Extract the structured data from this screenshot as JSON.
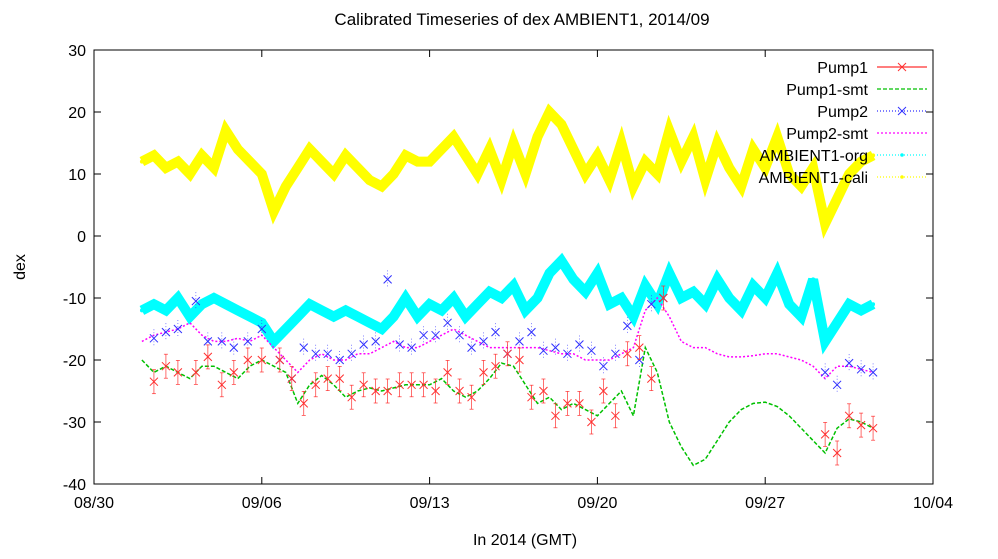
{
  "chart_data": {
    "type": "line",
    "title": "Calibrated Timeseries of dex AMBIENT1, 2014/09",
    "xlabel": "In 2014 (GMT)",
    "ylabel": "dex",
    "x_ticks": [
      "08/30",
      "09/06",
      "09/13",
      "09/20",
      "09/27",
      "10/04"
    ],
    "y_ticks": [
      "-40",
      "-30",
      "-20",
      "-10",
      "0",
      "10",
      "20",
      "30"
    ],
    "xlim": [
      "2014-08-30",
      "2014-10-04"
    ],
    "ylim": [
      -40,
      30
    ],
    "grid": false,
    "legend_position": "top-right",
    "series": [
      {
        "name": "Pump1",
        "color": "#ff3030",
        "marker": "x",
        "x": [
          "2014-09-01T12:00",
          "2014-09-02T00:00",
          "2014-09-02T12:00",
          "2014-09-03T06:00",
          "2014-09-03T18:00",
          "2014-09-04T08:00",
          "2014-09-04T20:00",
          "2014-09-05T10:00",
          "2014-09-06T00:00",
          "2014-09-06T18:00",
          "2014-09-07T06:00",
          "2014-09-07T18:00",
          "2014-09-08T06:00",
          "2014-09-08T18:00",
          "2014-09-09T06:00",
          "2014-09-09T18:00",
          "2014-09-10T06:00",
          "2014-09-10T18:00",
          "2014-09-11T06:00",
          "2014-09-11T18:00",
          "2014-09-12T06:00",
          "2014-09-12T18:00",
          "2014-09-13T06:00",
          "2014-09-13T18:00",
          "2014-09-14T06:00",
          "2014-09-14T18:00",
          "2014-09-15T06:00",
          "2014-09-15T18:00",
          "2014-09-16T06:00",
          "2014-09-16T18:00",
          "2014-09-17T06:00",
          "2014-09-17T18:00",
          "2014-09-18T06:00",
          "2014-09-18T18:00",
          "2014-09-19T06:00",
          "2014-09-19T18:00",
          "2014-09-20T06:00",
          "2014-09-20T18:00",
          "2014-09-21T06:00",
          "2014-09-21T18:00",
          "2014-09-22T06:00",
          "2014-09-22T18:00",
          "2014-09-29T12:00",
          "2014-09-30T00:00",
          "2014-09-30T12:00",
          "2014-10-01T00:00",
          "2014-10-01T12:00"
        ],
        "values": [
          -23.5,
          -21,
          -22,
          -22,
          -19.5,
          -24,
          -22,
          -20,
          -20,
          -20,
          -23,
          -27,
          -24,
          -23,
          -23,
          -26,
          -24,
          -25,
          -25,
          -24,
          -24,
          -24,
          -25,
          -22,
          -25,
          -26,
          -22,
          -21,
          -19,
          -20,
          -26,
          -25,
          -29,
          -27,
          -27,
          -30,
          -25,
          -29,
          -19,
          -18,
          -23,
          -10,
          -32,
          -35,
          -29,
          -30.5,
          -31
        ]
      },
      {
        "name": "Pump1-smt",
        "color": "#00c000",
        "x": [
          "2014-09-01T00:00",
          "2014-09-01T12:00",
          "2014-09-02T00:00",
          "2014-09-02T12:00",
          "2014-09-03T00:00",
          "2014-09-03T12:00",
          "2014-09-04T00:00",
          "2014-09-04T12:00",
          "2014-09-05T00:00",
          "2014-09-05T12:00",
          "2014-09-06T00:00",
          "2014-09-06T12:00",
          "2014-09-07T00:00",
          "2014-09-07T12:00",
          "2014-09-08T00:00",
          "2014-09-08T12:00",
          "2014-09-09T00:00",
          "2014-09-09T12:00",
          "2014-09-10T00:00",
          "2014-09-10T12:00",
          "2014-09-11T00:00",
          "2014-09-11T12:00",
          "2014-09-12T00:00",
          "2014-09-12T12:00",
          "2014-09-13T00:00",
          "2014-09-13T12:00",
          "2014-09-14T00:00",
          "2014-09-14T12:00",
          "2014-09-15T00:00",
          "2014-09-15T12:00",
          "2014-09-16T00:00",
          "2014-09-16T12:00",
          "2014-09-17T00:00",
          "2014-09-17T12:00",
          "2014-09-18T00:00",
          "2014-09-18T12:00",
          "2014-09-19T00:00",
          "2014-09-19T12:00",
          "2014-09-20T00:00",
          "2014-09-20T12:00",
          "2014-09-21T00:00",
          "2014-09-21T12:00",
          "2014-09-22T00:00",
          "2014-09-22T12:00",
          "2014-09-23T00:00",
          "2014-09-23T12:00",
          "2014-09-24T00:00",
          "2014-09-24T12:00",
          "2014-09-25T00:00",
          "2014-09-25T12:00",
          "2014-09-26T00:00",
          "2014-09-26T12:00",
          "2014-09-27T00:00",
          "2014-09-27T12:00",
          "2014-09-28T00:00",
          "2014-09-28T12:00",
          "2014-09-29T00:00",
          "2014-09-29T12:00",
          "2014-09-30T00:00",
          "2014-09-30T12:00",
          "2014-10-01T00:00",
          "2014-10-01T12:00"
        ],
        "values": [
          -20,
          -22,
          -21,
          -22,
          -23,
          -21,
          -21,
          -22,
          -23,
          -21,
          -20,
          -21,
          -22,
          -27,
          -24,
          -22.5,
          -24,
          -26,
          -25,
          -24.5,
          -25,
          -24.5,
          -24,
          -24,
          -24,
          -23,
          -25,
          -26,
          -25,
          -23,
          -20.5,
          -21,
          -24,
          -27,
          -26,
          -28,
          -27,
          -28,
          -29,
          -27,
          -25,
          -29,
          -18,
          -22,
          -30,
          -34,
          -37,
          -36,
          -33,
          -30,
          -28,
          -27,
          -26.8,
          -27.5,
          -29,
          -31,
          -33,
          -35,
          -31,
          -29.5,
          -30,
          -31
        ]
      },
      {
        "name": "Pump2",
        "color": "#3030ff",
        "marker": "x",
        "x": [
          "2014-09-01T12:00",
          "2014-09-02T00:00",
          "2014-09-02T12:00",
          "2014-09-03T06:00",
          "2014-09-03T18:00",
          "2014-09-04T08:00",
          "2014-09-04T20:00",
          "2014-09-05T10:00",
          "2014-09-06T00:00",
          "2014-09-06T18:00",
          "2014-09-07T06:00",
          "2014-09-07T18:00",
          "2014-09-08T06:00",
          "2014-09-08T18:00",
          "2014-09-09T06:00",
          "2014-09-09T18:00",
          "2014-09-10T06:00",
          "2014-09-10T18:00",
          "2014-09-11T06:00",
          "2014-09-11T18:00",
          "2014-09-12T06:00",
          "2014-09-12T18:00",
          "2014-09-13T06:00",
          "2014-09-13T18:00",
          "2014-09-14T06:00",
          "2014-09-14T18:00",
          "2014-09-15T06:00",
          "2014-09-15T18:00",
          "2014-09-16T06:00",
          "2014-09-16T18:00",
          "2014-09-17T06:00",
          "2014-09-17T18:00",
          "2014-09-18T06:00",
          "2014-09-18T18:00",
          "2014-09-19T06:00",
          "2014-09-19T18:00",
          "2014-09-20T06:00",
          "2014-09-20T18:00",
          "2014-09-21T06:00",
          "2014-09-21T18:00",
          "2014-09-22T06:00",
          "2014-09-22T18:00",
          "2014-09-29T12:00",
          "2014-09-30T00:00",
          "2014-09-30T12:00",
          "2014-10-01T00:00",
          "2014-10-01T12:00"
        ],
        "values": [
          -16.5,
          -15.5,
          -15,
          -10.5,
          -17,
          -17,
          -18,
          -17,
          -15,
          -20,
          -23,
          -18,
          -19,
          -19,
          -20,
          -19,
          -17.5,
          -17,
          -7,
          -17.5,
          -18,
          -16,
          -16,
          -14,
          -16,
          -18,
          -17,
          -15.5,
          -19,
          -17,
          -15.5,
          -18.5,
          -18,
          -19,
          -17.5,
          -18.5,
          -21,
          -19,
          -14.5,
          -20,
          -11,
          -10,
          -22,
          -24,
          -20.5,
          -21.5,
          -22
        ]
      },
      {
        "name": "Pump2-smt",
        "color": "#ff00ff",
        "x": [
          "2014-09-01T00:00",
          "2014-09-01T12:00",
          "2014-09-02T00:00",
          "2014-09-02T12:00",
          "2014-09-03T00:00",
          "2014-09-03T12:00",
          "2014-09-04T00:00",
          "2014-09-04T12:00",
          "2014-09-05T00:00",
          "2014-09-05T12:00",
          "2014-09-06T00:00",
          "2014-09-06T12:00",
          "2014-09-07T00:00",
          "2014-09-07T12:00",
          "2014-09-08T00:00",
          "2014-09-08T12:00",
          "2014-09-09T00:00",
          "2014-09-09T12:00",
          "2014-09-10T00:00",
          "2014-09-10T12:00",
          "2014-09-11T00:00",
          "2014-09-11T12:00",
          "2014-09-12T00:00",
          "2014-09-12T12:00",
          "2014-09-13T00:00",
          "2014-09-13T12:00",
          "2014-09-14T00:00",
          "2014-09-14T12:00",
          "2014-09-15T00:00",
          "2014-09-15T12:00",
          "2014-09-16T00:00",
          "2014-09-16T12:00",
          "2014-09-17T00:00",
          "2014-09-17T12:00",
          "2014-09-18T00:00",
          "2014-09-18T12:00",
          "2014-09-19T00:00",
          "2014-09-19T12:00",
          "2014-09-20T00:00",
          "2014-09-20T12:00",
          "2014-09-21T00:00",
          "2014-09-21T12:00",
          "2014-09-22T00:00",
          "2014-09-22T12:00",
          "2014-09-23T00:00",
          "2014-09-23T12:00",
          "2014-09-24T00:00",
          "2014-09-24T12:00",
          "2014-09-25T00:00",
          "2014-09-25T12:00",
          "2014-09-26T00:00",
          "2014-09-26T12:00",
          "2014-09-27T00:00",
          "2014-09-27T12:00",
          "2014-09-28T00:00",
          "2014-09-28T12:00",
          "2014-09-29T00:00",
          "2014-09-29T12:00",
          "2014-09-30T00:00",
          "2014-09-30T12:00",
          "2014-10-01T00:00",
          "2014-10-01T12:00"
        ],
        "values": [
          -17,
          -16,
          -15.5,
          -15,
          -14,
          -16,
          -17,
          -17,
          -16.5,
          -17,
          -16,
          -18,
          -20,
          -22,
          -20,
          -19,
          -20,
          -20,
          -19,
          -19,
          -18,
          -17,
          -18,
          -18,
          -17,
          -16,
          -15,
          -16,
          -17,
          -18,
          -18,
          -18,
          -18,
          -18,
          -18.5,
          -19,
          -19,
          -20,
          -20,
          -20,
          -19,
          -18,
          -12,
          -10,
          -13,
          -17,
          -18,
          -18,
          -19,
          -19.5,
          -19.5,
          -19.3,
          -19,
          -19,
          -19.5,
          -20,
          -21,
          -23,
          -21,
          -21,
          -21.5,
          -22
        ]
      },
      {
        "name": "AMBIENT1-org",
        "color": "#00ffff",
        "marker": "dot",
        "x": [
          "2014-09-01T00:00",
          "2014-09-01T12:00",
          "2014-09-02T00:00",
          "2014-09-02T12:00",
          "2014-09-03T00:00",
          "2014-09-03T12:00",
          "2014-09-04T00:00",
          "2014-09-04T12:00",
          "2014-09-05T00:00",
          "2014-09-05T12:00",
          "2014-09-06T00:00",
          "2014-09-06T12:00",
          "2014-09-07T00:00",
          "2014-09-07T12:00",
          "2014-09-08T00:00",
          "2014-09-08T12:00",
          "2014-09-09T00:00",
          "2014-09-09T12:00",
          "2014-09-10T00:00",
          "2014-09-10T12:00",
          "2014-09-11T00:00",
          "2014-09-11T12:00",
          "2014-09-12T00:00",
          "2014-09-12T12:00",
          "2014-09-13T00:00",
          "2014-09-13T12:00",
          "2014-09-14T00:00",
          "2014-09-14T12:00",
          "2014-09-15T00:00",
          "2014-09-15T12:00",
          "2014-09-16T00:00",
          "2014-09-16T12:00",
          "2014-09-17T00:00",
          "2014-09-17T12:00",
          "2014-09-18T00:00",
          "2014-09-18T12:00",
          "2014-09-19T00:00",
          "2014-09-19T12:00",
          "2014-09-20T00:00",
          "2014-09-20T12:00",
          "2014-09-21T00:00",
          "2014-09-21T12:00",
          "2014-09-22T00:00",
          "2014-09-22T12:00",
          "2014-09-23T00:00",
          "2014-09-23T12:00",
          "2014-09-24T00:00",
          "2014-09-24T12:00",
          "2014-09-25T00:00",
          "2014-09-25T12:00",
          "2014-09-26T00:00",
          "2014-09-26T12:00",
          "2014-09-27T00:00",
          "2014-09-27T12:00",
          "2014-09-28T00:00",
          "2014-09-28T12:00",
          "2014-09-29T00:00",
          "2014-09-29T12:00",
          "2014-09-30T00:00",
          "2014-09-30T12:00",
          "2014-10-01T00:00",
          "2014-10-01T12:00"
        ],
        "values": [
          -12,
          -11,
          -12,
          -10,
          -13,
          -11,
          -10,
          -11,
          -12,
          -13,
          -14,
          -17,
          -15,
          -13,
          -11,
          -12,
          -13,
          -12,
          -13,
          -14,
          -15,
          -13,
          -10,
          -13,
          -11,
          -12,
          -10,
          -13,
          -11,
          -9,
          -10,
          -8,
          -12,
          -10,
          -6,
          -4,
          -7,
          -9,
          -6,
          -11,
          -10,
          -13,
          -8,
          -11,
          -6,
          -10,
          -9,
          -11,
          -7,
          -10,
          -12,
          -8,
          -10,
          -6,
          -11,
          -13,
          -7,
          -17,
          -14,
          -11,
          -12,
          -11
        ]
      },
      {
        "name": "AMBIENT1-cali",
        "color": "#ffff00",
        "marker": "dot",
        "x": [
          "2014-09-01T00:00",
          "2014-09-01T12:00",
          "2014-09-02T00:00",
          "2014-09-02T12:00",
          "2014-09-03T00:00",
          "2014-09-03T12:00",
          "2014-09-04T00:00",
          "2014-09-04T12:00",
          "2014-09-05T00:00",
          "2014-09-05T12:00",
          "2014-09-06T00:00",
          "2014-09-06T12:00",
          "2014-09-07T00:00",
          "2014-09-07T12:00",
          "2014-09-08T00:00",
          "2014-09-08T12:00",
          "2014-09-09T00:00",
          "2014-09-09T12:00",
          "2014-09-10T00:00",
          "2014-09-10T12:00",
          "2014-09-11T00:00",
          "2014-09-11T12:00",
          "2014-09-12T00:00",
          "2014-09-12T12:00",
          "2014-09-13T00:00",
          "2014-09-13T12:00",
          "2014-09-14T00:00",
          "2014-09-14T12:00",
          "2014-09-15T00:00",
          "2014-09-15T12:00",
          "2014-09-16T00:00",
          "2014-09-16T12:00",
          "2014-09-17T00:00",
          "2014-09-17T12:00",
          "2014-09-18T00:00",
          "2014-09-18T12:00",
          "2014-09-19T00:00",
          "2014-09-19T12:00",
          "2014-09-20T00:00",
          "2014-09-20T12:00",
          "2014-09-21T00:00",
          "2014-09-21T12:00",
          "2014-09-22T00:00",
          "2014-09-22T12:00",
          "2014-09-23T00:00",
          "2014-09-23T12:00",
          "2014-09-24T00:00",
          "2014-09-24T12:00",
          "2014-09-25T00:00",
          "2014-09-25T12:00",
          "2014-09-26T00:00",
          "2014-09-26T12:00",
          "2014-09-27T00:00",
          "2014-09-27T12:00",
          "2014-09-28T00:00",
          "2014-09-28T12:00",
          "2014-09-29T00:00",
          "2014-09-29T12:00",
          "2014-09-30T00:00",
          "2014-09-30T12:00",
          "2014-10-01T00:00",
          "2014-10-01T12:00"
        ],
        "values": [
          12,
          13,
          11,
          12,
          10,
          13,
          11,
          17,
          14,
          12,
          10,
          4,
          8,
          11,
          14,
          12,
          10,
          13,
          11,
          9,
          8,
          10,
          13,
          12,
          12,
          14,
          16,
          13,
          10,
          14,
          9,
          15,
          10,
          16,
          20,
          18,
          14,
          10,
          13,
          9,
          15,
          8,
          12,
          10,
          17,
          12,
          16,
          9,
          15,
          11,
          8,
          14,
          11,
          16,
          10,
          8,
          11,
          2,
          6,
          10,
          12,
          13
        ]
      }
    ]
  }
}
